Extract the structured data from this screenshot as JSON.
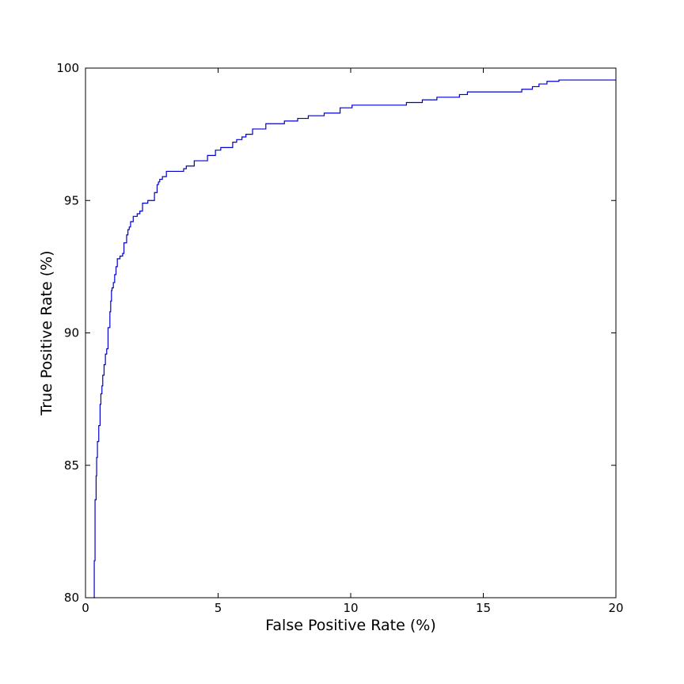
{
  "chart_data": {
    "type": "line",
    "title": "",
    "xlabel": "False Positive Rate (%)",
    "ylabel": "True Positive Rate (%)",
    "xlim": [
      0,
      20
    ],
    "ylim": [
      80,
      100
    ],
    "x_ticks": [
      0,
      5,
      10,
      15,
      20
    ],
    "y_ticks": [
      80,
      85,
      90,
      95,
      100
    ],
    "x_tick_labels": [
      "0",
      "5",
      "10",
      "15",
      "20"
    ],
    "y_tick_labels": [
      "80",
      "85",
      "90",
      "95",
      "100"
    ],
    "grid": false,
    "legend": "none",
    "series": [
      {
        "line_color": "#0000cc",
        "step": true,
        "x": [
          0.3,
          0.33,
          0.36,
          0.4,
          0.42,
          0.45,
          0.5,
          0.55,
          0.58,
          0.62,
          0.65,
          0.7,
          0.75,
          0.8,
          0.85,
          0.92,
          0.95,
          0.98,
          1.0,
          1.05,
          1.1,
          1.15,
          1.2,
          1.3,
          1.4,
          1.45,
          1.55,
          1.6,
          1.65,
          1.7,
          1.8,
          1.95,
          2.05,
          2.15,
          2.35,
          2.6,
          2.7,
          2.75,
          2.8,
          2.9,
          3.05,
          3.7,
          3.8,
          4.1,
          4.6,
          4.9,
          5.1,
          5.55,
          5.7,
          5.9,
          6.05,
          6.3,
          6.8,
          7.5,
          8.0,
          8.4,
          9.0,
          9.6,
          10.05,
          12.1,
          12.7,
          13.25,
          14.1,
          14.4,
          16.45,
          16.85,
          17.1,
          17.4,
          17.85,
          20.0
        ],
        "y": [
          80.0,
          81.4,
          83.7,
          84.6,
          85.3,
          85.9,
          86.5,
          87.3,
          87.7,
          88.0,
          88.4,
          88.8,
          89.2,
          89.4,
          90.2,
          90.8,
          91.2,
          91.6,
          91.7,
          91.9,
          92.2,
          92.5,
          92.8,
          92.9,
          93.0,
          93.4,
          93.7,
          93.9,
          94.0,
          94.2,
          94.4,
          94.5,
          94.6,
          94.9,
          95.0,
          95.3,
          95.6,
          95.7,
          95.8,
          95.9,
          96.1,
          96.2,
          96.3,
          96.5,
          96.7,
          96.9,
          97.0,
          97.2,
          97.3,
          97.4,
          97.5,
          97.7,
          97.9,
          98.0,
          98.1,
          98.2,
          98.3,
          98.5,
          98.6,
          98.7,
          98.8,
          98.9,
          99.0,
          99.1,
          99.2,
          99.3,
          99.4,
          99.5,
          99.55,
          99.55
        ]
      }
    ]
  }
}
